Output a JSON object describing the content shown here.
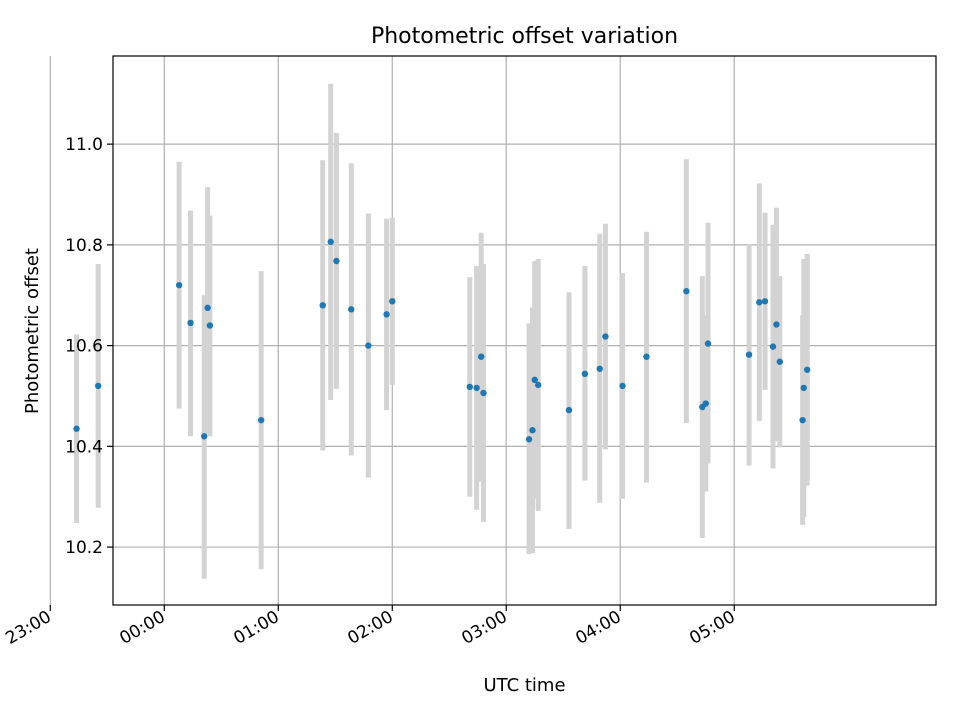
{
  "chart_data": {
    "type": "scatter",
    "title": "Photometric offset variation",
    "xlabel": "UTC time",
    "ylabel": "Photometric offset",
    "x_unit": "hours since 00:00 UTC",
    "xlim": [
      -0.45,
      6.77
    ],
    "ylim": [
      10.085,
      11.175
    ],
    "grid": true,
    "x_ticks": [
      {
        "value": -1,
        "label": "23:00"
      },
      {
        "value": 0,
        "label": "00:00"
      },
      {
        "value": 1,
        "label": "01:00"
      },
      {
        "value": 2,
        "label": "02:00"
      },
      {
        "value": 3,
        "label": "03:00"
      },
      {
        "value": 4,
        "label": "04:00"
      },
      {
        "value": 5,
        "label": "05:00"
      }
    ],
    "y_ticks": [
      {
        "value": 10.2,
        "label": "10.2"
      },
      {
        "value": 10.4,
        "label": "10.4"
      },
      {
        "value": 10.6,
        "label": "10.6"
      },
      {
        "value": 10.8,
        "label": "10.8"
      },
      {
        "value": 11.0,
        "label": "11.0"
      }
    ],
    "colors": {
      "point": "#1f77b4",
      "errorbar": "#d3d3d3",
      "grid": "#b0b0b0"
    },
    "points": [
      {
        "t": -0.77,
        "y": 10.435,
        "lo": 10.248,
        "hi": 10.622
      },
      {
        "t": -0.58,
        "y": 10.52,
        "lo": 10.278,
        "hi": 10.762
      },
      {
        "t": 0.13,
        "y": 10.72,
        "lo": 10.475,
        "hi": 10.965
      },
      {
        "t": 0.23,
        "y": 10.645,
        "lo": 10.42,
        "hi": 10.868
      },
      {
        "t": 0.35,
        "y": 10.42,
        "lo": 10.137,
        "hi": 10.7
      },
      {
        "t": 0.38,
        "y": 10.675,
        "lo": 10.425,
        "hi": 10.915
      },
      {
        "t": 0.4,
        "y": 10.64,
        "lo": 10.42,
        "hi": 10.858
      },
      {
        "t": 0.85,
        "y": 10.452,
        "lo": 10.156,
        "hi": 10.748
      },
      {
        "t": 1.39,
        "y": 10.68,
        "lo": 10.392,
        "hi": 10.968
      },
      {
        "t": 1.46,
        "y": 10.806,
        "lo": 10.492,
        "hi": 11.12
      },
      {
        "t": 1.51,
        "y": 10.768,
        "lo": 10.514,
        "hi": 11.022
      },
      {
        "t": 1.64,
        "y": 10.672,
        "lo": 10.382,
        "hi": 10.962
      },
      {
        "t": 1.79,
        "y": 10.6,
        "lo": 10.338,
        "hi": 10.862
      },
      {
        "t": 1.95,
        "y": 10.662,
        "lo": 10.472,
        "hi": 10.852
      },
      {
        "t": 2.0,
        "y": 10.688,
        "lo": 10.522,
        "hi": 10.854
      },
      {
        "t": 2.68,
        "y": 10.518,
        "lo": 10.3,
        "hi": 10.736
      },
      {
        "t": 2.74,
        "y": 10.516,
        "lo": 10.274,
        "hi": 10.758
      },
      {
        "t": 2.78,
        "y": 10.578,
        "lo": 10.33,
        "hi": 10.824
      },
      {
        "t": 2.8,
        "y": 10.506,
        "lo": 10.25,
        "hi": 10.762
      },
      {
        "t": 3.2,
        "y": 10.414,
        "lo": 10.186,
        "hi": 10.644
      },
      {
        "t": 3.23,
        "y": 10.432,
        "lo": 10.188,
        "hi": 10.676
      },
      {
        "t": 3.25,
        "y": 10.532,
        "lo": 10.296,
        "hi": 10.768
      },
      {
        "t": 3.28,
        "y": 10.522,
        "lo": 10.272,
        "hi": 10.772
      },
      {
        "t": 3.55,
        "y": 10.472,
        "lo": 10.236,
        "hi": 10.706
      },
      {
        "t": 3.69,
        "y": 10.544,
        "lo": 10.332,
        "hi": 10.758
      },
      {
        "t": 3.82,
        "y": 10.554,
        "lo": 10.288,
        "hi": 10.822
      },
      {
        "t": 3.87,
        "y": 10.618,
        "lo": 10.394,
        "hi": 10.842
      },
      {
        "t": 4.02,
        "y": 10.52,
        "lo": 10.296,
        "hi": 10.744
      },
      {
        "t": 4.23,
        "y": 10.578,
        "lo": 10.328,
        "hi": 10.826
      },
      {
        "t": 4.58,
        "y": 10.708,
        "lo": 10.446,
        "hi": 10.97
      },
      {
        "t": 4.72,
        "y": 10.478,
        "lo": 10.218,
        "hi": 10.738
      },
      {
        "t": 4.75,
        "y": 10.485,
        "lo": 10.31,
        "hi": 10.66
      },
      {
        "t": 4.77,
        "y": 10.604,
        "lo": 10.366,
        "hi": 10.844
      },
      {
        "t": 5.13,
        "y": 10.582,
        "lo": 10.362,
        "hi": 10.802
      },
      {
        "t": 5.22,
        "y": 10.686,
        "lo": 10.45,
        "hi": 10.922
      },
      {
        "t": 5.27,
        "y": 10.688,
        "lo": 10.512,
        "hi": 10.864
      },
      {
        "t": 5.34,
        "y": 10.598,
        "lo": 10.356,
        "hi": 10.84
      },
      {
        "t": 5.37,
        "y": 10.642,
        "lo": 10.41,
        "hi": 10.874
      },
      {
        "t": 5.4,
        "y": 10.568,
        "lo": 10.398,
        "hi": 10.738
      },
      {
        "t": 5.6,
        "y": 10.452,
        "lo": 10.244,
        "hi": 10.66
      },
      {
        "t": 5.61,
        "y": 10.516,
        "lo": 10.26,
        "hi": 10.772
      },
      {
        "t": 5.64,
        "y": 10.552,
        "lo": 10.322,
        "hi": 10.782
      }
    ]
  }
}
